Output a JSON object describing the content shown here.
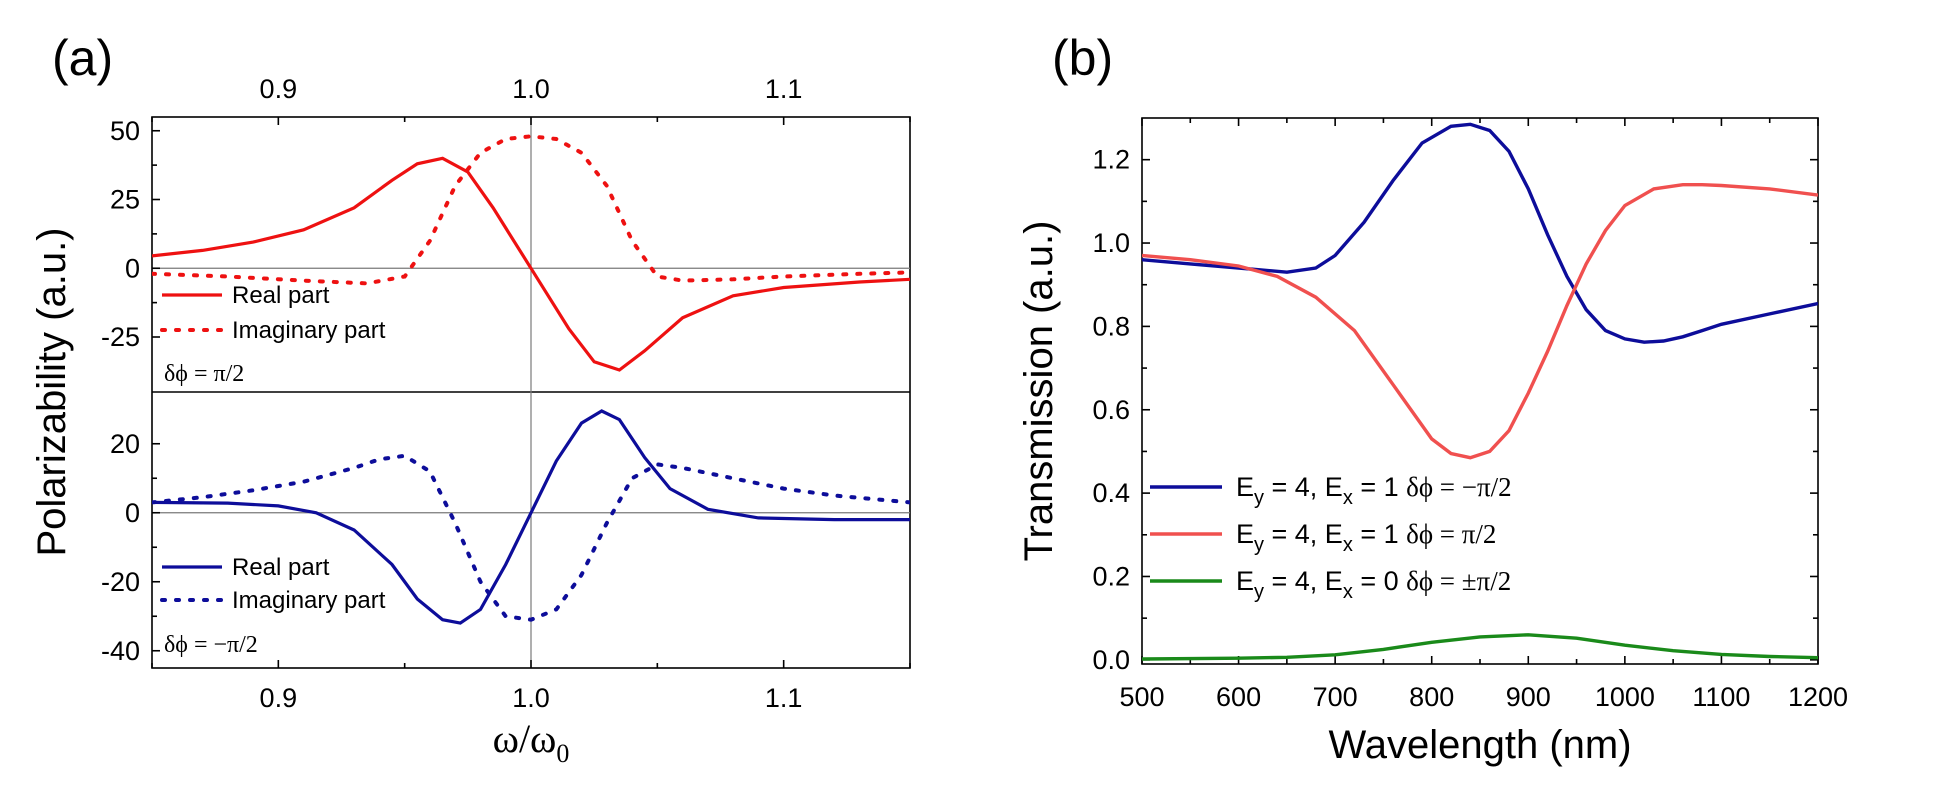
{
  "chart_data": [
    {
      "id": "a",
      "panel_label": "(a)",
      "type": "line",
      "xlabel": "ω/ω",
      "xlabel_sub": "0",
      "ylabel": "Polarizability (a.u.)",
      "xlim": [
        0.85,
        1.15
      ],
      "x_ticks": [
        0.9,
        1.0,
        1.1
      ],
      "x_tick_labels": [
        "0.9",
        "1.0",
        "1.1"
      ],
      "reference_x": 1.0,
      "subplots": [
        {
          "id": "a-top",
          "ylim": [
            -45,
            55
          ],
          "y_ticks": [
            50,
            25,
            0,
            -25
          ],
          "y_tick_labels": [
            "50",
            "25",
            "0",
            "-25"
          ],
          "reference_y": 0,
          "annotation": "δϕ =  π/2",
          "legend": [
            "Real part",
            "Imaginary part"
          ],
          "series": [
            {
              "name": "Real part",
              "color": "#ee1111",
              "dash": "solid",
              "x": [
                0.85,
                0.87,
                0.89,
                0.91,
                0.93,
                0.945,
                0.955,
                0.965,
                0.975,
                0.985,
                1.0,
                1.015,
                1.025,
                1.035,
                1.045,
                1.06,
                1.08,
                1.1,
                1.13,
                1.15
              ],
              "y": [
                4.5,
                6.5,
                9.5,
                14,
                22,
                32,
                38,
                40,
                35,
                22,
                0,
                -22,
                -34,
                -37,
                -30,
                -18,
                -10,
                -7,
                -5,
                -4
              ]
            },
            {
              "name": "Imaginary part",
              "color": "#ee1111",
              "dash": "dotted",
              "x": [
                0.85,
                0.88,
                0.91,
                0.935,
                0.95,
                0.96,
                0.97,
                0.98,
                0.99,
                1.0,
                1.01,
                1.02,
                1.03,
                1.04,
                1.05,
                1.06,
                1.08,
                1.1,
                1.13,
                1.15
              ],
              "y": [
                -2,
                -3,
                -4.5,
                -5.5,
                -3,
                10,
                30,
                42,
                47,
                48,
                47,
                42,
                30,
                10,
                -3,
                -4.5,
                -4,
                -3,
                -2,
                -1.5
              ]
            }
          ]
        },
        {
          "id": "a-bottom",
          "ylim": [
            -45,
            35
          ],
          "y_ticks": [
            20,
            0,
            -20,
            -40
          ],
          "y_tick_labels": [
            "20",
            "0",
            "-20",
            "-40"
          ],
          "reference_y": 0,
          "annotation": "δϕ = −π/2",
          "legend": [
            "Real part",
            "Imaginary part"
          ],
          "series": [
            {
              "name": "Real part",
              "color": "#0d0d9a",
              "dash": "solid",
              "x": [
                0.85,
                0.88,
                0.9,
                0.915,
                0.93,
                0.945,
                0.955,
                0.965,
                0.972,
                0.98,
                0.99,
                1.0,
                1.01,
                1.02,
                1.028,
                1.035,
                1.045,
                1.055,
                1.07,
                1.09,
                1.12,
                1.15
              ],
              "y": [
                3,
                2.8,
                2,
                0,
                -5,
                -15,
                -25,
                -31,
                -32,
                -28,
                -15,
                0,
                15,
                26,
                29.5,
                27,
                16,
                7,
                1,
                -1.5,
                -2,
                -2
              ]
            },
            {
              "name": "Imaginary part",
              "color": "#0d0d9a",
              "dash": "dotted",
              "x": [
                0.85,
                0.87,
                0.89,
                0.91,
                0.93,
                0.94,
                0.95,
                0.96,
                0.97,
                0.98,
                0.99,
                1.0,
                1.01,
                1.02,
                1.03,
                1.04,
                1.05,
                1.06,
                1.08,
                1.1,
                1.12,
                1.15
              ],
              "y": [
                3,
                4.5,
                6.5,
                9,
                13,
                15.5,
                16.5,
                12,
                -3,
                -20,
                -30,
                -31,
                -28,
                -18,
                -3,
                10,
                14,
                13,
                10,
                7,
                5,
                3
              ]
            }
          ]
        }
      ]
    },
    {
      "id": "b",
      "panel_label": "(b)",
      "type": "line",
      "xlabel": "Wavelength (nm)",
      "ylabel": "Transmission (a.u.)",
      "xlim": [
        500,
        1200
      ],
      "ylim": [
        -0.01,
        1.3
      ],
      "x_ticks": [
        500,
        600,
        700,
        800,
        900,
        1000,
        1100,
        1200
      ],
      "x_tick_labels": [
        "500",
        "600",
        "700",
        "800",
        "900",
        "1000",
        "1100",
        "1200"
      ],
      "y_ticks": [
        0.0,
        0.2,
        0.4,
        0.6,
        0.8,
        1.0,
        1.2
      ],
      "y_tick_labels": [
        "0.0",
        "0.2",
        "0.4",
        "0.6",
        "0.8",
        "1.0",
        "1.2"
      ],
      "legend": [
        {
          "parts": [
            "E",
            "y",
            " = 4, E",
            "x",
            " = 1  "
          ],
          "phase": "δϕ = −π/2"
        },
        {
          "parts": [
            "E",
            "y",
            " = 4, E",
            "x",
            " = 1  "
          ],
          "phase": "δϕ =  π/2"
        },
        {
          "parts": [
            "E",
            "y",
            " = 4, E",
            "x",
            " = 0  "
          ],
          "phase": "δϕ =  ±π/2"
        }
      ],
      "series": [
        {
          "name": "Ey = 4, Ex = 1 δϕ = −π/2",
          "color": "#0d0d9a",
          "x": [
            500,
            550,
            600,
            650,
            680,
            700,
            730,
            760,
            790,
            820,
            840,
            860,
            880,
            900,
            920,
            940,
            960,
            980,
            1000,
            1020,
            1040,
            1060,
            1080,
            1100,
            1150,
            1200
          ],
          "y": [
            0.96,
            0.95,
            0.94,
            0.93,
            0.94,
            0.97,
            1.05,
            1.15,
            1.24,
            1.28,
            1.285,
            1.27,
            1.22,
            1.13,
            1.02,
            0.92,
            0.84,
            0.79,
            0.77,
            0.762,
            0.765,
            0.775,
            0.79,
            0.805,
            0.83,
            0.855
          ]
        },
        {
          "name": "Ey = 4, Ex = 1 δϕ = π/2",
          "color": "#f0504f",
          "x": [
            500,
            550,
            600,
            640,
            680,
            720,
            760,
            800,
            820,
            840,
            860,
            880,
            900,
            920,
            940,
            960,
            980,
            1000,
            1030,
            1060,
            1080,
            1100,
            1150,
            1200
          ],
          "y": [
            0.97,
            0.96,
            0.945,
            0.92,
            0.87,
            0.79,
            0.66,
            0.53,
            0.495,
            0.485,
            0.5,
            0.55,
            0.64,
            0.74,
            0.85,
            0.95,
            1.03,
            1.09,
            1.13,
            1.14,
            1.14,
            1.138,
            1.13,
            1.115
          ]
        },
        {
          "name": "Ey = 4, Ex = 0 δϕ = ±π/2",
          "color": "#1a8a1a",
          "x": [
            500,
            600,
            650,
            700,
            750,
            800,
            850,
            900,
            950,
            1000,
            1050,
            1100,
            1150,
            1200
          ],
          "y": [
            0.002,
            0.004,
            0.006,
            0.012,
            0.025,
            0.042,
            0.055,
            0.06,
            0.052,
            0.035,
            0.022,
            0.013,
            0.008,
            0.005
          ]
        }
      ]
    }
  ]
}
